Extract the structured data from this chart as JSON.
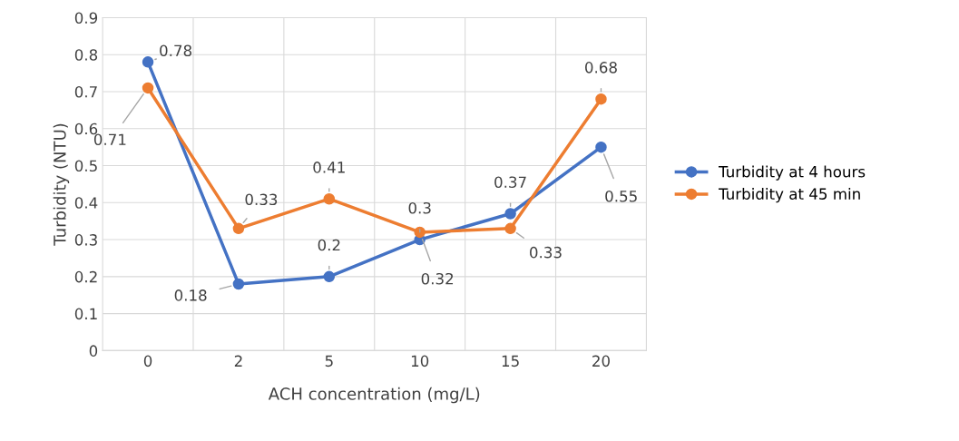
{
  "chart_data": {
    "type": "line",
    "xlabel": "ACH concentration (mg/L)",
    "ylabel": "Turbidity (NTU)",
    "categories": [
      "0",
      "2",
      "5",
      "10",
      "15",
      "20"
    ],
    "series": [
      {
        "name": "Turbidity at 4 hours",
        "color": "#4472c4",
        "values": [
          0.78,
          0.18,
          0.2,
          0.3,
          0.37,
          0.55
        ]
      },
      {
        "name": "Turbidity at 45 min",
        "color": "#ed7d31",
        "values": [
          0.71,
          0.33,
          0.41,
          0.32,
          0.33,
          0.68
        ]
      }
    ],
    "ylim": [
      0,
      0.9
    ],
    "yticks": [
      0,
      0.1,
      0.2,
      0.3,
      0.4,
      0.5,
      0.6,
      0.7,
      0.8,
      0.9
    ],
    "grid": true,
    "legend": "right",
    "marker": "circle",
    "line_style": "solid",
    "data_labels": true
  }
}
